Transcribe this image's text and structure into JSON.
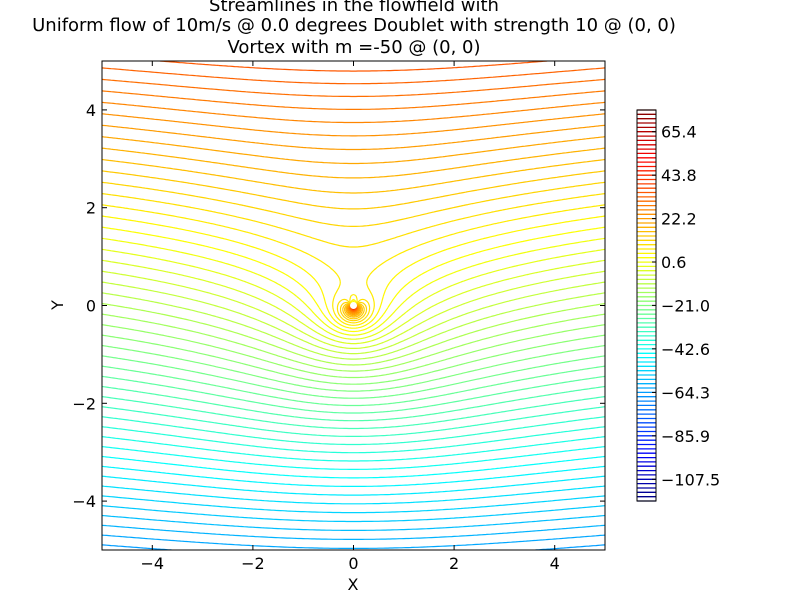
{
  "chart_data": {
    "type": "contour",
    "title_lines": [
      "Streamlines in the flowfield with",
      "Uniform flow of 10m/s @ 0.0 degrees Doublet with strength 10 @ (0, 0)",
      "Vortex with m =-50 @ (0, 0)"
    ],
    "xlabel": "X",
    "ylabel": "Y",
    "xlim": [
      -5,
      5
    ],
    "ylim": [
      -5,
      5
    ],
    "x_ticks": [
      -4,
      -2,
      0,
      2,
      4
    ],
    "y_ticks": [
      4,
      2,
      0,
      -2,
      -4
    ],
    "x_tick_labels": [
      "−4",
      "−2",
      "0",
      "2",
      "4"
    ],
    "y_tick_labels": [
      "4",
      "2",
      "0",
      "−2",
      "−4"
    ],
    "flow": {
      "uniform_speed": 10,
      "uniform_angle_deg": 0.0,
      "doublet_strength": 10,
      "doublet_position": [
        0,
        0
      ],
      "vortex_strength": -50,
      "vortex_position": [
        0,
        0
      ]
    },
    "colorbar": {
      "min": -118.3,
      "max": 76.2,
      "tick_values": [
        65.4,
        43.8,
        22.2,
        0.6,
        -21.0,
        -42.6,
        -64.3,
        -85.9,
        -107.5
      ],
      "tick_labels": [
        "65.4",
        "43.8",
        "22.2",
        "0.6",
        "−21.0",
        "−42.6",
        "−64.3",
        "−85.9",
        "−107.5"
      ],
      "colormap": "jet"
    },
    "grid": false
  }
}
